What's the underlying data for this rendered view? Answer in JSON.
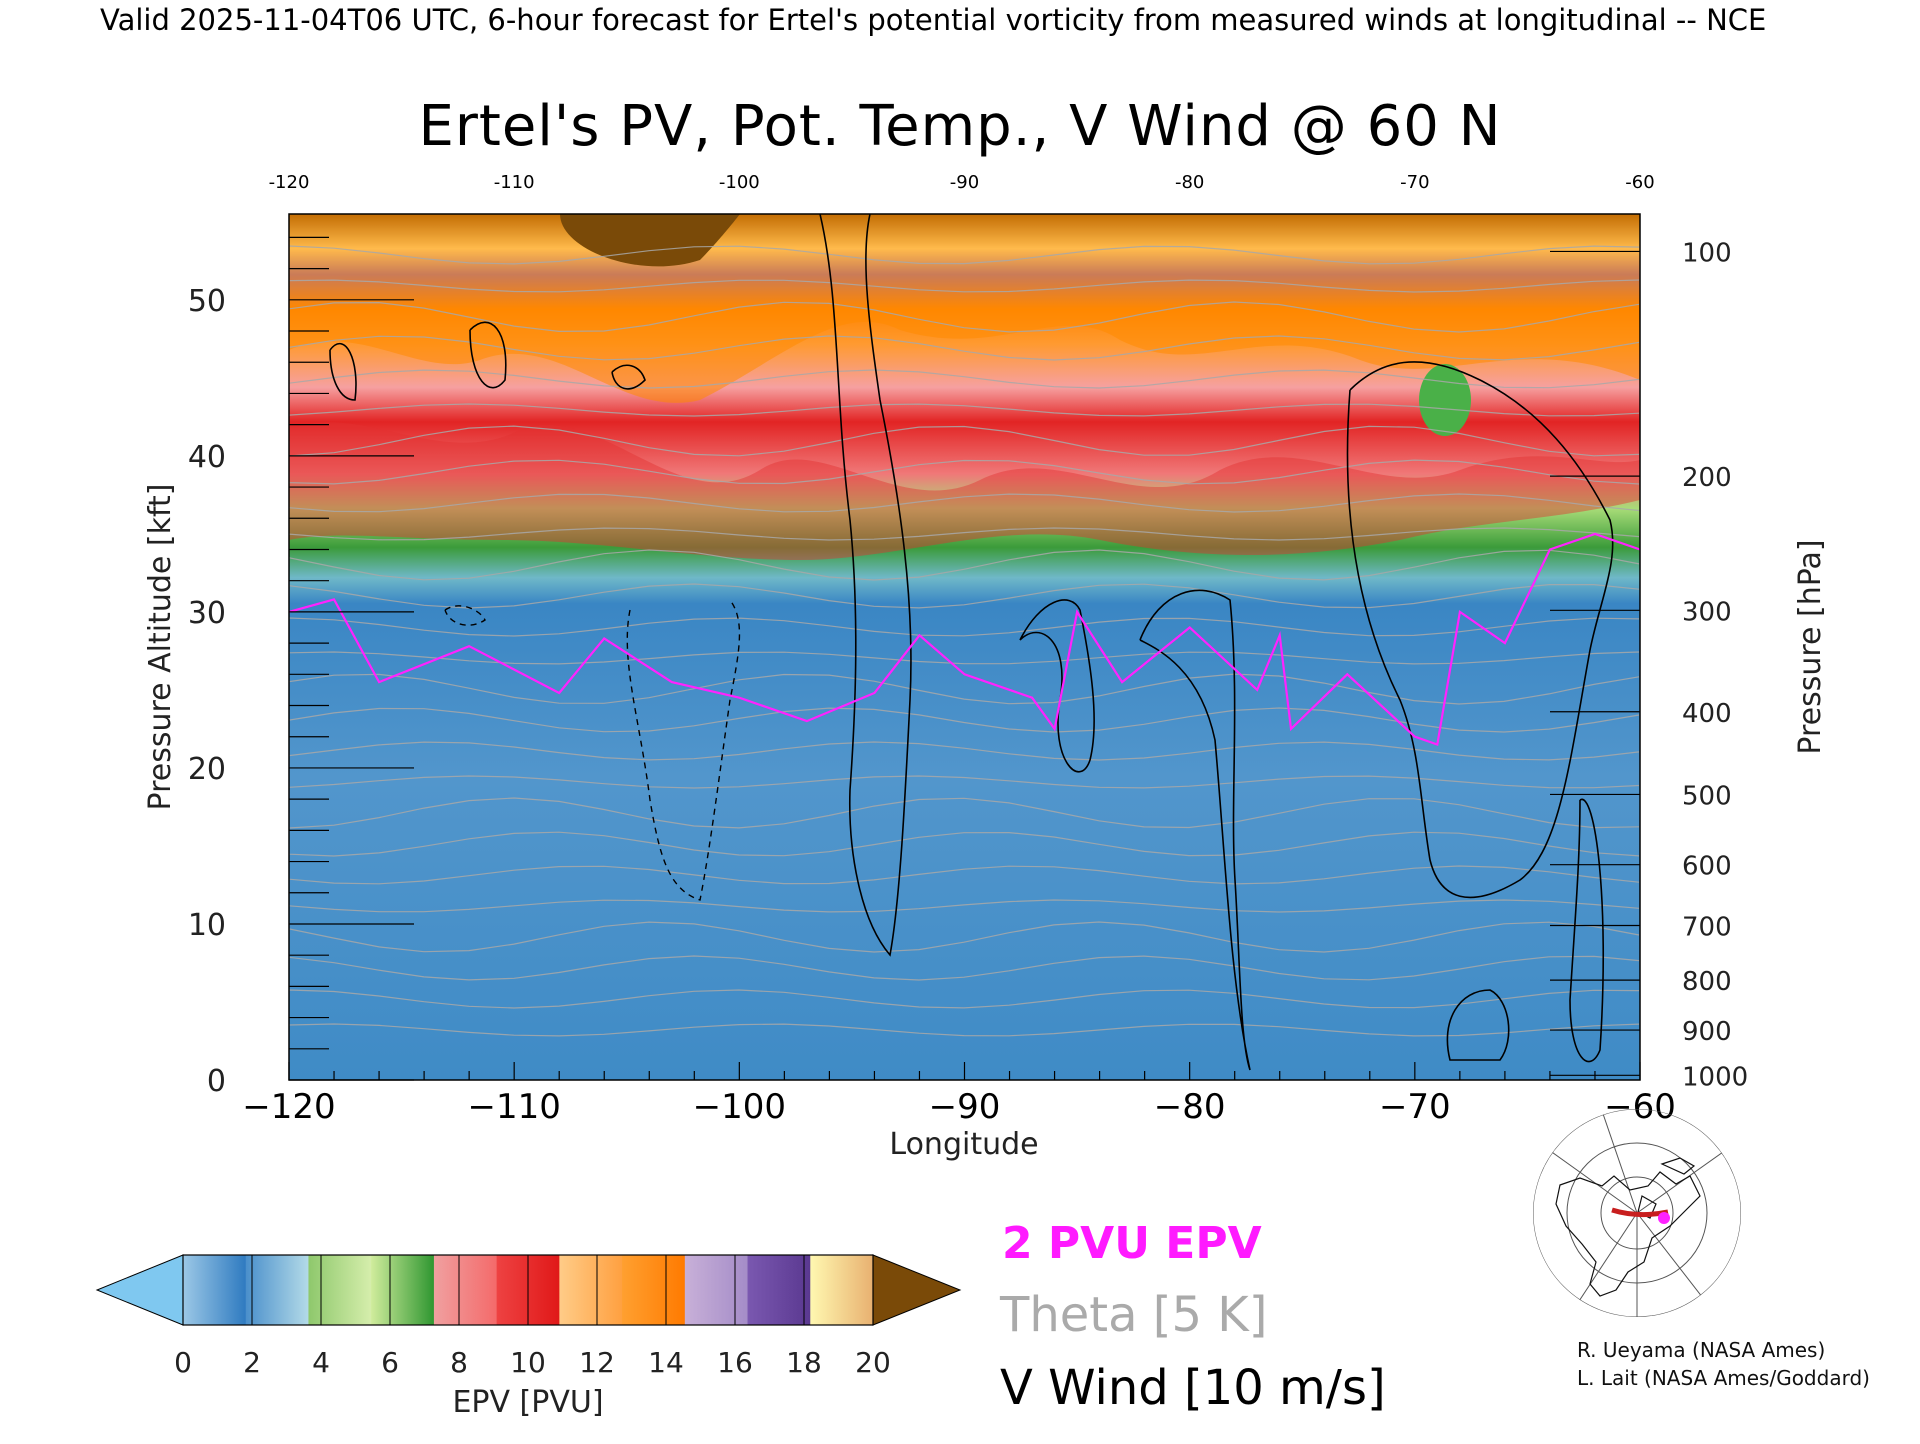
{
  "header": "Valid 2025-11-04T06 UTC, 6-hour forecast for Ertel's potential vorticity from measured winds at longitudinal -- NCE",
  "chart_data": {
    "type": "heatmap",
    "title": "Ertel's PV, Pot. Temp., V Wind @ 60 N",
    "xlabel": "Longitude",
    "ylabel_left": "Pressure Altitude [kft]",
    "ylabel_right": "Pressure [hPa]",
    "xlim": [
      -120,
      -60
    ],
    "ylim": [
      0,
      55.5
    ],
    "x_ticks": [
      "-120",
      "-110",
      "-100",
      "-90",
      "-80",
      "-70",
      "-60"
    ],
    "x_ticks_top": [
      "-120",
      "-110",
      "-100",
      "-90",
      "-80",
      "-70",
      "-60"
    ],
    "y_ticks_left": [
      "0",
      "10",
      "20",
      "30",
      "40",
      "50"
    ],
    "y_ticks_right": [
      {
        "label": "100",
        "kft": 53.1
      },
      {
        "label": "200",
        "kft": 38.7
      },
      {
        "label": "300",
        "kft": 30.1
      },
      {
        "label": "400",
        "kft": 23.6
      },
      {
        "label": "500",
        "kft": 18.3
      },
      {
        "label": "600",
        "kft": 13.8
      },
      {
        "label": "700",
        "kft": 9.9
      },
      {
        "label": "800",
        "kft": 6.4
      },
      {
        "label": "900",
        "kft": 3.2
      },
      {
        "label": "1000",
        "kft": 0.3
      }
    ],
    "tropopause_2pvu_kft": [
      {
        "lon": -120,
        "kft": 30.0
      },
      {
        "lon": -118,
        "kft": 30.8
      },
      {
        "lon": -116,
        "kft": 25.5
      },
      {
        "lon": -112,
        "kft": 27.8
      },
      {
        "lon": -108,
        "kft": 24.8
      },
      {
        "lon": -106,
        "kft": 28.3
      },
      {
        "lon": -103,
        "kft": 25.5
      },
      {
        "lon": -100,
        "kft": 24.5
      },
      {
        "lon": -97,
        "kft": 23.0
      },
      {
        "lon": -94,
        "kft": 24.8
      },
      {
        "lon": -92,
        "kft": 28.5
      },
      {
        "lon": -90,
        "kft": 26.0
      },
      {
        "lon": -87,
        "kft": 24.5
      },
      {
        "lon": -86,
        "kft": 22.5
      },
      {
        "lon": -85,
        "kft": 30.0
      },
      {
        "lon": -83,
        "kft": 25.5
      },
      {
        "lon": -80,
        "kft": 29.0
      },
      {
        "lon": -77,
        "kft": 25.0
      },
      {
        "lon": -76,
        "kft": 28.5
      },
      {
        "lon": -75.5,
        "kft": 22.5
      },
      {
        "lon": -73,
        "kft": 26.0
      },
      {
        "lon": -70,
        "kft": 22.0
      },
      {
        "lon": -69,
        "kft": 21.5
      },
      {
        "lon": -68,
        "kft": 30.0
      },
      {
        "lon": -66,
        "kft": 28.0
      },
      {
        "lon": -64,
        "kft": 34.0
      },
      {
        "lon": -62,
        "kft": 35.0
      },
      {
        "lon": -60,
        "kft": 34.0
      }
    ],
    "colorbar": {
      "label": "EPV [PVU]",
      "ticks": [
        "0",
        "2",
        "4",
        "6",
        "8",
        "10",
        "12",
        "14",
        "16",
        "18",
        "20"
      ],
      "under_color": "#7fc8f0",
      "over_color": "#7a4a08",
      "gradients": [
        [
          "#9cc8e6",
          "#2e7ac0"
        ],
        [
          "#4a8fcb",
          "#b4dbe8"
        ],
        [
          "#8ec86c",
          "#d6eeac"
        ],
        [
          "#d0ec9c",
          "#2e9630"
        ],
        [
          "#f0a0a0",
          "#f46a6a"
        ],
        [
          "#ee4242",
          "#e01818"
        ],
        [
          "#ffcc88",
          "#ffa040"
        ],
        [
          "#ffa030",
          "#ff7a00"
        ],
        [
          "#c8b0d8",
          "#a48cc8"
        ],
        [
          "#7a58b0",
          "#5a3890"
        ],
        [
          "#fff8b0",
          "#e8b070"
        ]
      ]
    },
    "legend": {
      "epv": "2 PVU EPV",
      "theta": "Theta [5 K]",
      "vwind": "V Wind [10 m/s]"
    },
    "colors": {
      "tropopause": "#ff22ff",
      "theta": "#a8a8a8",
      "vwind": "#000000",
      "section_line": "#c81e1e",
      "marker": "#ff22ff"
    }
  },
  "credits": [
    "R. Ueyama (NASA Ames)",
    "L. Lait (NASA Ames/Goddard)"
  ]
}
